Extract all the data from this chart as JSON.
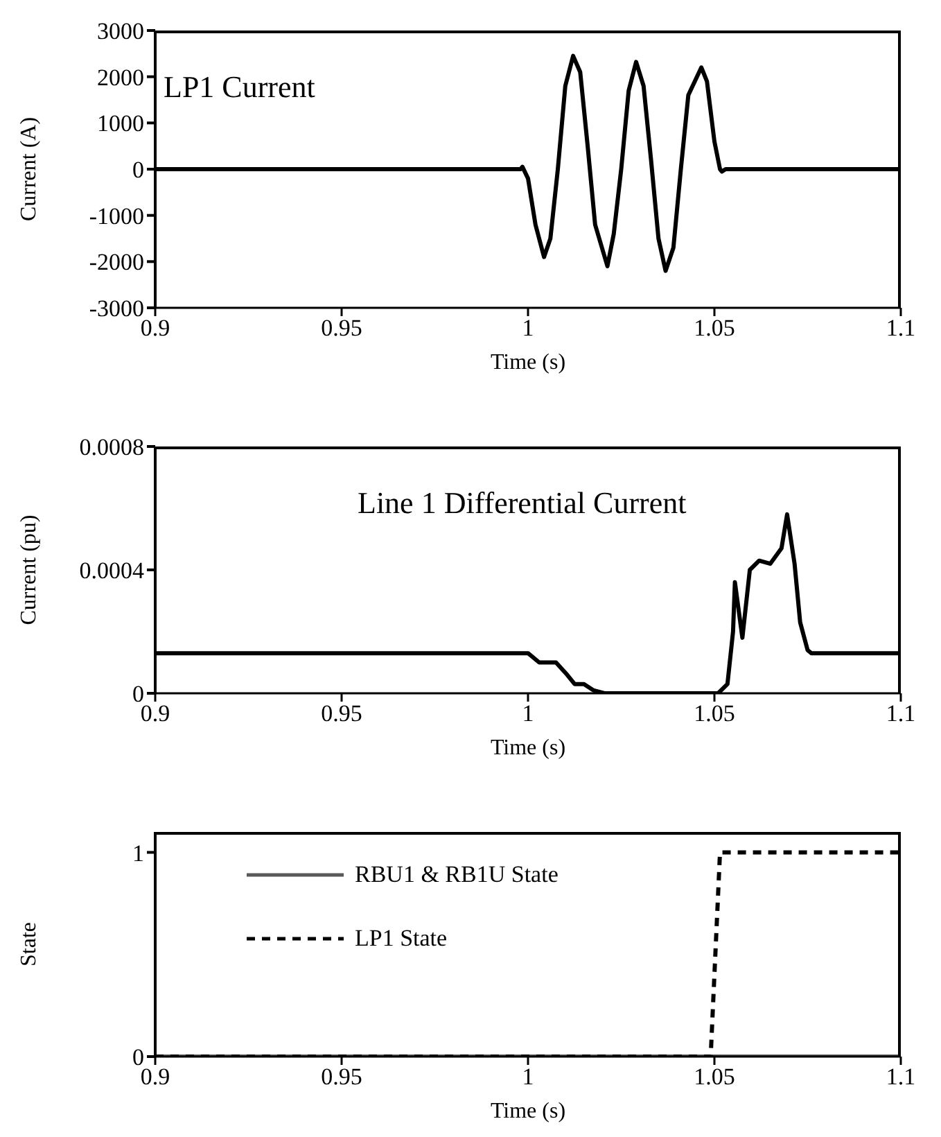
{
  "chart_data": [
    {
      "type": "line",
      "title": "LP1 Current",
      "xlabel": "Time (s)",
      "ylabel": "Current (A)",
      "xlim": [
        0.9,
        1.1
      ],
      "xticks": [
        0.9,
        0.95,
        1,
        1.05,
        1.1
      ],
      "ylim": [
        -3000,
        3000
      ],
      "yticks": [
        -3000,
        -2000,
        -1000,
        0,
        1000,
        2000,
        3000
      ],
      "grid": false,
      "legend": false,
      "marker": "none",
      "series": [
        {
          "color": "#000000",
          "line_style": "solid",
          "x": [
            0.9,
            0.92,
            0.94,
            0.96,
            0.98,
            0.998,
            0.9985,
            1.0,
            1.002,
            1.0043,
            1.006,
            1.008,
            1.01,
            1.0121,
            1.014,
            1.016,
            1.018,
            1.0213,
            1.023,
            1.025,
            1.027,
            1.029,
            1.031,
            1.033,
            1.035,
            1.0369,
            1.039,
            1.041,
            1.043,
            1.0465,
            1.048,
            1.05,
            1.0515,
            1.052,
            1.053,
            1.1
          ],
          "values": [
            0,
            0,
            0,
            0,
            0,
            0,
            50,
            -200,
            -1200,
            -1900,
            -1500,
            0,
            1800,
            2450,
            2100,
            500,
            -1200,
            -2100,
            -1400,
            0,
            1700,
            2320,
            1800,
            200,
            -1500,
            -2200,
            -1700,
            0,
            1600,
            2200,
            1900,
            600,
            0,
            -50,
            0,
            0
          ]
        }
      ]
    },
    {
      "type": "line",
      "title": "Line 1 Differential Current",
      "xlabel": "Time (s)",
      "ylabel": "Current (pu)",
      "xlim": [
        0.9,
        1.1
      ],
      "xticks": [
        0.9,
        0.95,
        1,
        1.05,
        1.1
      ],
      "ylim": [
        0,
        0.0008
      ],
      "yticks": [
        0,
        0.0004,
        0.0008
      ],
      "grid": false,
      "legend": false,
      "marker": "none",
      "series": [
        {
          "color": "#000000",
          "line_style": "solid",
          "x": [
            0.9,
            1.0,
            1.003,
            1.005,
            1.0075,
            1.0105,
            1.0125,
            1.015,
            1.0175,
            1.0205,
            1.051,
            1.0535,
            1.055,
            1.0555,
            1.0575,
            1.0595,
            1.062,
            1.065,
            1.068,
            1.0695,
            1.0715,
            1.073,
            1.075,
            1.076,
            1.078,
            1.1
          ],
          "values": [
            0.00013,
            0.00013,
            0.0001,
            0.0001,
            0.0001,
            6e-05,
            3e-05,
            3e-05,
            1e-05,
            0,
            0,
            3e-05,
            0.0002,
            0.00036,
            0.00018,
            0.0004,
            0.00043,
            0.00042,
            0.00047,
            0.00058,
            0.00042,
            0.00023,
            0.00014,
            0.00013,
            0.00013,
            0.00013
          ]
        }
      ]
    },
    {
      "type": "line",
      "xlabel": "Time (s)",
      "ylabel": "State",
      "xlim": [
        0.9,
        1.1
      ],
      "xticks": [
        0.9,
        0.95,
        1,
        1.05,
        1.1
      ],
      "ylim": [
        0,
        1.1
      ],
      "yticks": [
        0,
        1
      ],
      "grid": false,
      "legend": "left",
      "marker": "none",
      "series": [
        {
          "name": "RBU1 & RB1U State",
          "color": "#595959",
          "line_style": "solid",
          "x": [
            0.9,
            1.1
          ],
          "values": [
            0,
            0
          ]
        },
        {
          "name": "LP1 State",
          "color": "#000000",
          "line_style": "dashed",
          "x": [
            0.9,
            1.049,
            1.0515,
            1.1
          ],
          "values": [
            0,
            0,
            1,
            1
          ]
        }
      ]
    }
  ]
}
